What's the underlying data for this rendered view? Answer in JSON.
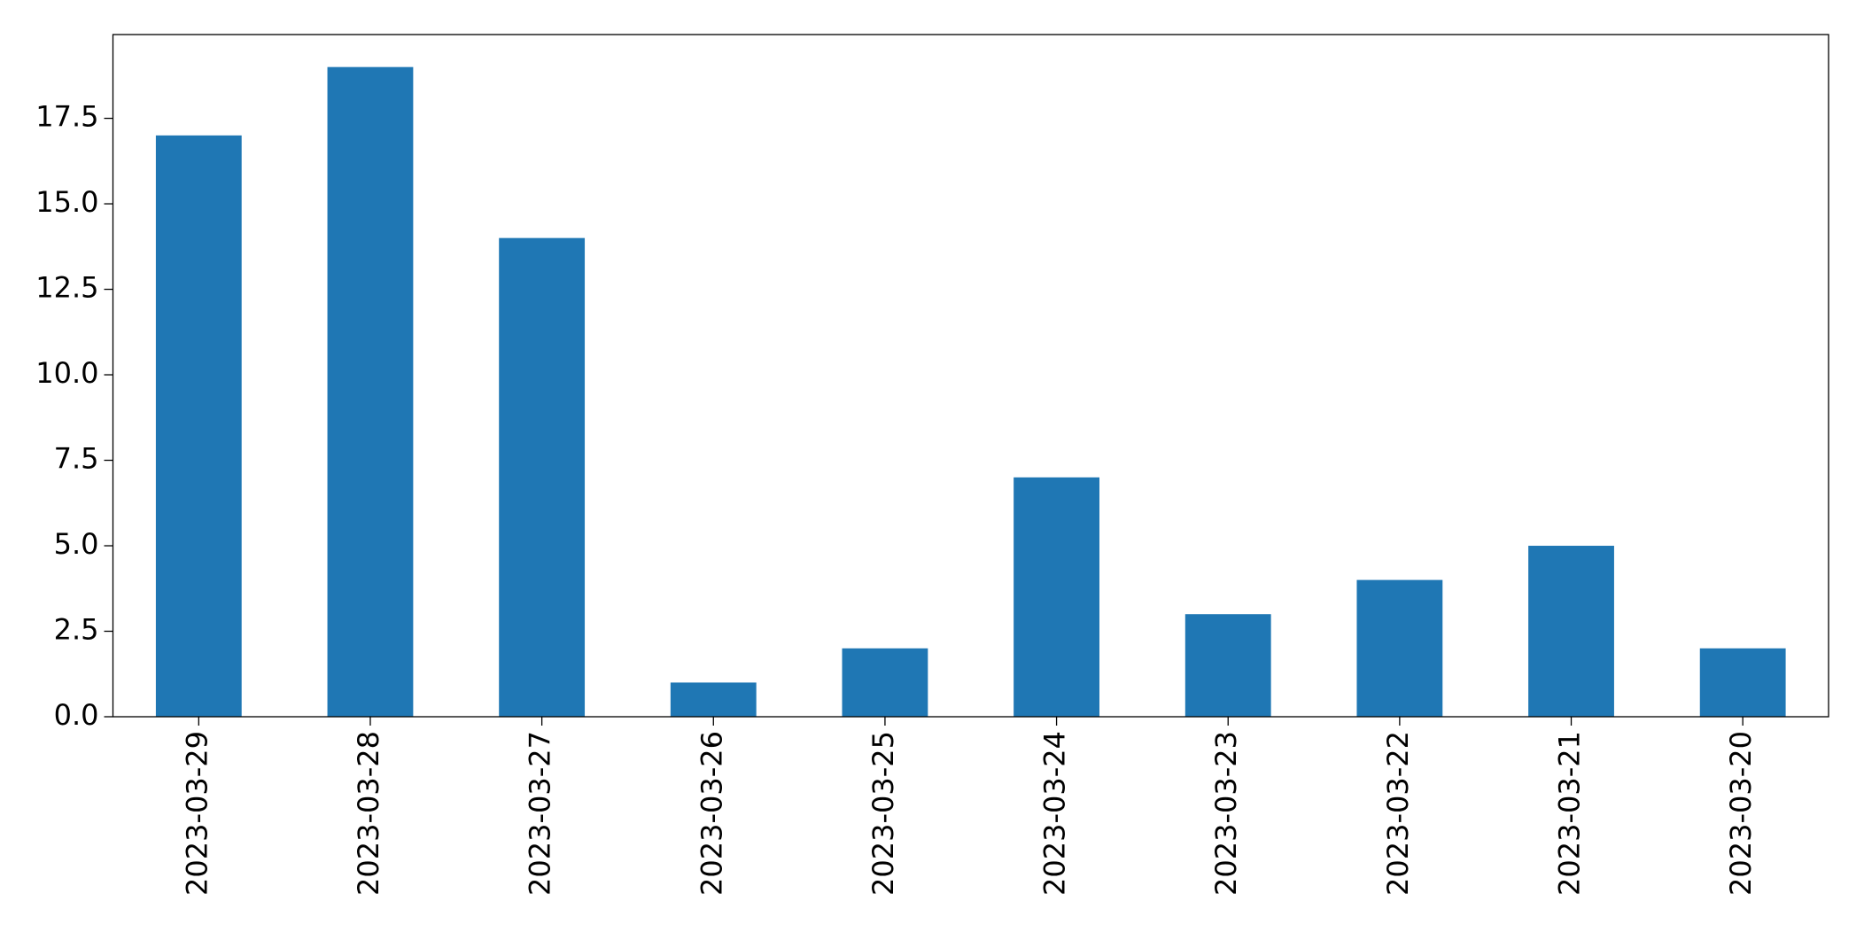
{
  "chart_data": {
    "type": "bar",
    "categories": [
      "2023-03-29",
      "2023-03-28",
      "2023-03-27",
      "2023-03-26",
      "2023-03-25",
      "2023-03-24",
      "2023-03-23",
      "2023-03-22",
      "2023-03-21",
      "2023-03-20"
    ],
    "values": [
      17,
      19,
      14,
      1,
      2,
      7,
      3,
      4,
      5,
      2
    ],
    "color": "#1f77b4",
    "ylim": [
      0,
      19.95
    ],
    "yticks": [
      {
        "value": 0,
        "label": "0.0"
      },
      2.5,
      {
        "value": 5,
        "label": "5.0"
      },
      7.5,
      {
        "value": 10,
        "label": "10.0"
      },
      12.5,
      {
        "value": 15,
        "label": "15.0"
      },
      17.5
    ],
    "grid": false
  }
}
